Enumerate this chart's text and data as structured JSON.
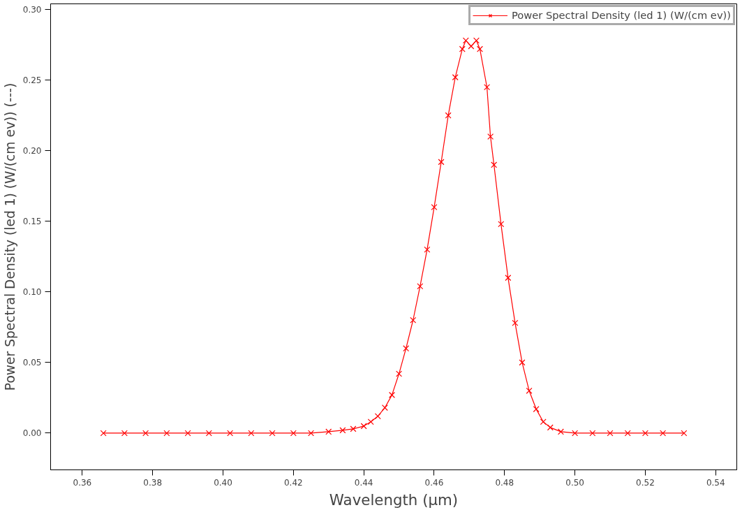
{
  "chart_data": {
    "type": "line",
    "xlabel": "Wavelength (µm)",
    "ylabel": "Power Spectral Density (led 1) (W/(cm ev)) (---)",
    "series": [
      {
        "name": "Power Spectral Density (led 1) (W/(cm ev))",
        "color": "#ff0000",
        "x": [
          0.366,
          0.372,
          0.378,
          0.384,
          0.39,
          0.396,
          0.402,
          0.408,
          0.414,
          0.42,
          0.425,
          0.43,
          0.434,
          0.437,
          0.44,
          0.442,
          0.444,
          0.446,
          0.448,
          0.45,
          0.452,
          0.454,
          0.456,
          0.458,
          0.46,
          0.462,
          0.464,
          0.466,
          0.468,
          0.469,
          0.4705,
          0.472,
          0.473,
          0.475,
          0.476,
          0.477,
          0.479,
          0.481,
          0.483,
          0.485,
          0.487,
          0.489,
          0.491,
          0.493,
          0.496,
          0.5,
          0.505,
          0.51,
          0.515,
          0.52,
          0.525,
          0.531
        ],
        "values": [
          0,
          0,
          0,
          0,
          0,
          0,
          0,
          0,
          0,
          0,
          0,
          0.001,
          0.002,
          0.003,
          0.005,
          0.008,
          0.012,
          0.018,
          0.027,
          0.042,
          0.06,
          0.08,
          0.104,
          0.13,
          0.16,
          0.192,
          0.225,
          0.252,
          0.272,
          0.278,
          0.274,
          0.278,
          0.272,
          0.245,
          0.21,
          0.19,
          0.148,
          0.11,
          0.078,
          0.05,
          0.03,
          0.017,
          0.008,
          0.004,
          0.001,
          0,
          0,
          0,
          0,
          0,
          0,
          0
        ]
      }
    ],
    "xlim": [
      0.351,
      0.546
    ],
    "ylim": [
      -0.026,
      0.304
    ],
    "xticks": [
      {
        "value": 0.36,
        "label": "0.36"
      },
      {
        "value": 0.38,
        "label": "0.38"
      },
      {
        "value": 0.4,
        "label": "0.40"
      },
      {
        "value": 0.42,
        "label": "0.42"
      },
      {
        "value": 0.44,
        "label": "0.44"
      },
      {
        "value": 0.46,
        "label": "0.46"
      },
      {
        "value": 0.48,
        "label": "0.48"
      },
      {
        "value": 0.5,
        "label": "0.50"
      },
      {
        "value": 0.52,
        "label": "0.52"
      },
      {
        "value": 0.54,
        "label": "0.54"
      }
    ],
    "yticks": [
      {
        "value": 0.0,
        "label": "0.00"
      },
      {
        "value": 0.05,
        "label": "0.05"
      },
      {
        "value": 0.1,
        "label": "0.10"
      },
      {
        "value": 0.15,
        "label": "0.15"
      },
      {
        "value": 0.2,
        "label": "0.20"
      },
      {
        "value": 0.25,
        "label": "0.25"
      },
      {
        "value": 0.3,
        "label": "0.30"
      }
    ],
    "grid": false,
    "legend": "top right",
    "marker": "cross",
    "line_style": "solid"
  }
}
